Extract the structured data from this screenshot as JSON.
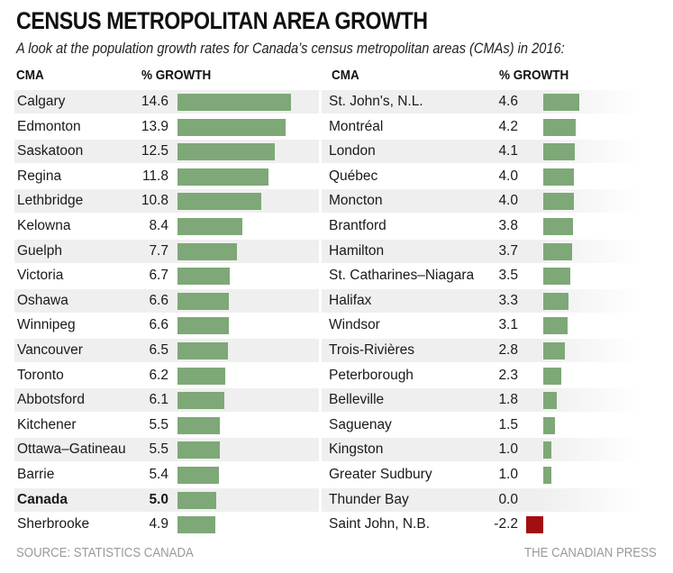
{
  "header": {
    "title": "CENSUS METROPOLITAN AREA GROWTH",
    "subtitle": "A look at the population growth rates for Canada’s census metropolitan areas (CMAs) in 2016:"
  },
  "columns": {
    "cma_label": "CMA",
    "growth_label": "% GROWTH"
  },
  "footer": {
    "source": "SOURCE: STATISTICS CANADA",
    "credit": "THE CANADIAN PRESS"
  },
  "colors": {
    "positive_bar": "#7ea877",
    "negative_bar": "#a30e12",
    "band": "#efefef"
  },
  "chart_data": {
    "type": "bar",
    "title": "CENSUS METROPOLITAN AREA GROWTH",
    "subtitle": "A look at the population growth rates for Canada’s census metropolitan areas (CMAs) in 2016:",
    "xlabel": "CMA",
    "ylabel": "% GROWTH",
    "orientation": "horizontal",
    "left_panel": [
      {
        "label": "Calgary",
        "value": 14.6,
        "display": "14.6"
      },
      {
        "label": "Edmonton",
        "value": 13.9,
        "display": "13.9"
      },
      {
        "label": "Saskatoon",
        "value": 12.5,
        "display": "12.5"
      },
      {
        "label": "Regina",
        "value": 11.8,
        "display": "11.8"
      },
      {
        "label": "Lethbridge",
        "value": 10.8,
        "display": "10.8"
      },
      {
        "label": "Kelowna",
        "value": 8.4,
        "display": "8.4"
      },
      {
        "label": "Guelph",
        "value": 7.7,
        "display": "7.7"
      },
      {
        "label": "Victoria",
        "value": 6.7,
        "display": "6.7"
      },
      {
        "label": "Oshawa",
        "value": 6.6,
        "display": "6.6"
      },
      {
        "label": "Winnipeg",
        "value": 6.6,
        "display": "6.6"
      },
      {
        "label": "Vancouver",
        "value": 6.5,
        "display": "6.5"
      },
      {
        "label": "Toronto",
        "value": 6.2,
        "display": "6.2"
      },
      {
        "label": "Abbotsford",
        "value": 6.1,
        "display": "6.1"
      },
      {
        "label": "Kitchener",
        "value": 5.5,
        "display": "5.5"
      },
      {
        "label": "Ottawa–Gatineau",
        "value": 5.5,
        "display": "5.5"
      },
      {
        "label": "Barrie",
        "value": 5.4,
        "display": "5.4"
      },
      {
        "label": "Canada",
        "value": 5.0,
        "display": "5.0",
        "bold": true
      },
      {
        "label": "Sherbrooke",
        "value": 4.9,
        "display": "4.9"
      }
    ],
    "right_panel": [
      {
        "label": "St. John's, N.L.",
        "value": 4.6,
        "display": "4.6"
      },
      {
        "label": "Montréal",
        "value": 4.2,
        "display": "4.2"
      },
      {
        "label": "London",
        "value": 4.1,
        "display": "4.1"
      },
      {
        "label": "Québec",
        "value": 4.0,
        "display": "4.0"
      },
      {
        "label": "Moncton",
        "value": 4.0,
        "display": "4.0"
      },
      {
        "label": "Brantford",
        "value": 3.8,
        "display": "3.8"
      },
      {
        "label": "Hamilton",
        "value": 3.7,
        "display": "3.7"
      },
      {
        "label": "St. Catharines–Niagara",
        "value": 3.5,
        "display": "3.5"
      },
      {
        "label": "Halifax",
        "value": 3.3,
        "display": "3.3"
      },
      {
        "label": "Windsor",
        "value": 3.1,
        "display": "3.1"
      },
      {
        "label": "Trois-Rivières",
        "value": 2.8,
        "display": "2.8"
      },
      {
        "label": "Peterborough",
        "value": 2.3,
        "display": "2.3"
      },
      {
        "label": "Belleville",
        "value": 1.8,
        "display": "1.8"
      },
      {
        "label": "Saguenay",
        "value": 1.5,
        "display": "1.5"
      },
      {
        "label": "Kingston",
        "value": 1.0,
        "display": "1.0"
      },
      {
        "label": "Greater Sudbury",
        "value": 1.0,
        "display": "1.0"
      },
      {
        "label": "Thunder Bay",
        "value": 0.0,
        "display": "0.0"
      },
      {
        "label": "Saint John, N.B.",
        "value": -2.2,
        "display": "-2.2"
      }
    ]
  }
}
